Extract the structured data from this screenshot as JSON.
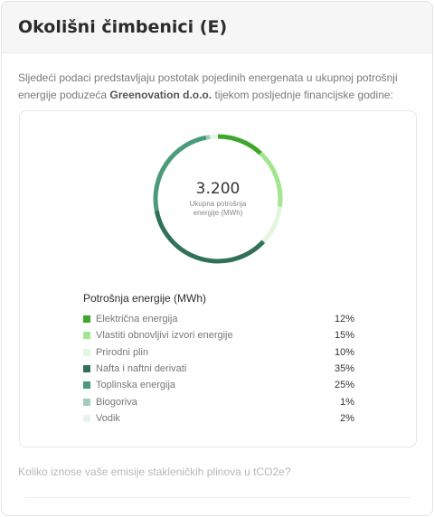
{
  "header": {
    "title": "Okolišni čimbenici (E)"
  },
  "intro": {
    "text_before": "Sljedeći podaci predstavljaju postotak pojedinih energenata u ukupnoj potrošnji energije poduzeća ",
    "company": "Greenovation d.o.o.",
    "text_after": " tijekom posljednje financijske godine:"
  },
  "chart_center": {
    "total": "3.200",
    "label": "Ukupna potrošnja energije (MWh)"
  },
  "legend": {
    "title": "Potrošnja energije (MWh)",
    "items": [
      {
        "label": "Električna energija",
        "value": "12%",
        "color": "#3ea62c"
      },
      {
        "label": "Vlastiti obnovljivi izvori energije",
        "value": "15%",
        "color": "#a3e68f"
      },
      {
        "label": "Prirodni plin",
        "value": "10%",
        "color": "#e4f6df"
      },
      {
        "label": "Nafta i naftni derivati",
        "value": "35%",
        "color": "#317257"
      },
      {
        "label": "Toplinska energija",
        "value": "25%",
        "color": "#4a9b7a"
      },
      {
        "label": "Biogoriva",
        "value": "1%",
        "color": "#a1cdbb"
      },
      {
        "label": "Vodik",
        "value": "2%",
        "color": "#e8f4ec"
      }
    ]
  },
  "chart_data": {
    "type": "pie",
    "categories": [
      "Električna energija",
      "Vlastiti obnovljivi izvori energije",
      "Prirodni plin",
      "Nafta i naftni derivati",
      "Toplinska energija",
      "Biogoriva",
      "Vodik"
    ],
    "values": [
      12,
      15,
      10,
      35,
      25,
      1,
      2
    ],
    "colors": [
      "#3ea62c",
      "#a3e68f",
      "#e4f6df",
      "#317257",
      "#4a9b7a",
      "#a1cdbb",
      "#e8f4ec"
    ],
    "title": "Potrošnja energije (MWh)"
  },
  "question": {
    "text": "Koliko iznose vaše emisije stakleničkih plinova u tCO2e?"
  }
}
